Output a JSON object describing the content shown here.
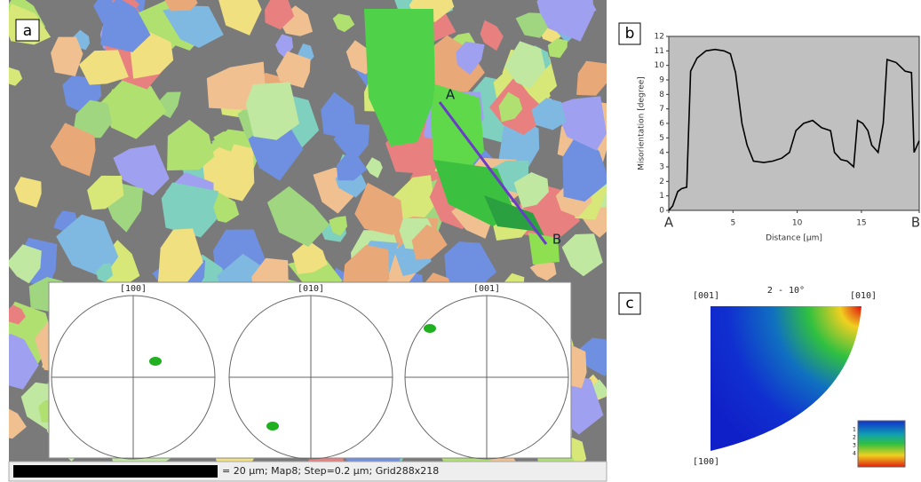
{
  "panel_a": {
    "label": "a",
    "points": [
      "A",
      "B"
    ],
    "pole_figures": [
      "[100]",
      "[010]",
      "[001]"
    ],
    "scale_bar": "= 20 µm; Map8; Step=0.2 µm; Grid288x218"
  },
  "chart_data": {
    "type": "line",
    "label": "b",
    "x_label": "Distance [µm]",
    "y_label": "Misorientation [degree]",
    "xlim": [
      0,
      19.5
    ],
    "ylim": [
      0,
      12
    ],
    "xticks": [
      {
        "value": 0,
        "label": "A"
      },
      5,
      10,
      15,
      {
        "value": 19.5,
        "label": "B"
      }
    ],
    "yticks": [
      0,
      1,
      2,
      3,
      4,
      5,
      6,
      7,
      8,
      9,
      10,
      11,
      12
    ],
    "x": [
      0,
      0.3,
      0.7,
      1.0,
      1.4,
      1.7,
      2.2,
      2.9,
      3.6,
      4.3,
      4.8,
      5.2,
      5.7,
      6.1,
      6.6,
      7.4,
      8.1,
      8.8,
      9.4,
      9.9,
      10.5,
      11.2,
      11.9,
      12.6,
      12.9,
      13.4,
      13.9,
      14.4,
      14.7,
      15.1,
      15.5,
      15.8,
      16.3,
      16.7,
      17.0,
      17.7,
      18.4,
      18.9,
      19.1,
      19.5
    ],
    "color": "#000000",
    "values": [
      0,
      0.3,
      1.3,
      1.5,
      1.6,
      9.6,
      10.5,
      11.0,
      11.1,
      11.0,
      10.8,
      9.5,
      6.0,
      4.5,
      3.4,
      3.3,
      3.4,
      3.6,
      4.0,
      5.5,
      6.0,
      6.2,
      5.7,
      5.5,
      4.0,
      3.5,
      3.4,
      3.0,
      6.2,
      6.0,
      5.5,
      4.5,
      4.0,
      6.0,
      10.4,
      10.2,
      9.6,
      9.5,
      4.0,
      4.8
    ]
  },
  "panel_c": {
    "label": "c",
    "title": "2 - 10°",
    "corners": [
      "[001]",
      "[010]",
      "[100]"
    ],
    "legend_ticks": [
      "1",
      "2",
      "3",
      "4"
    ]
  }
}
